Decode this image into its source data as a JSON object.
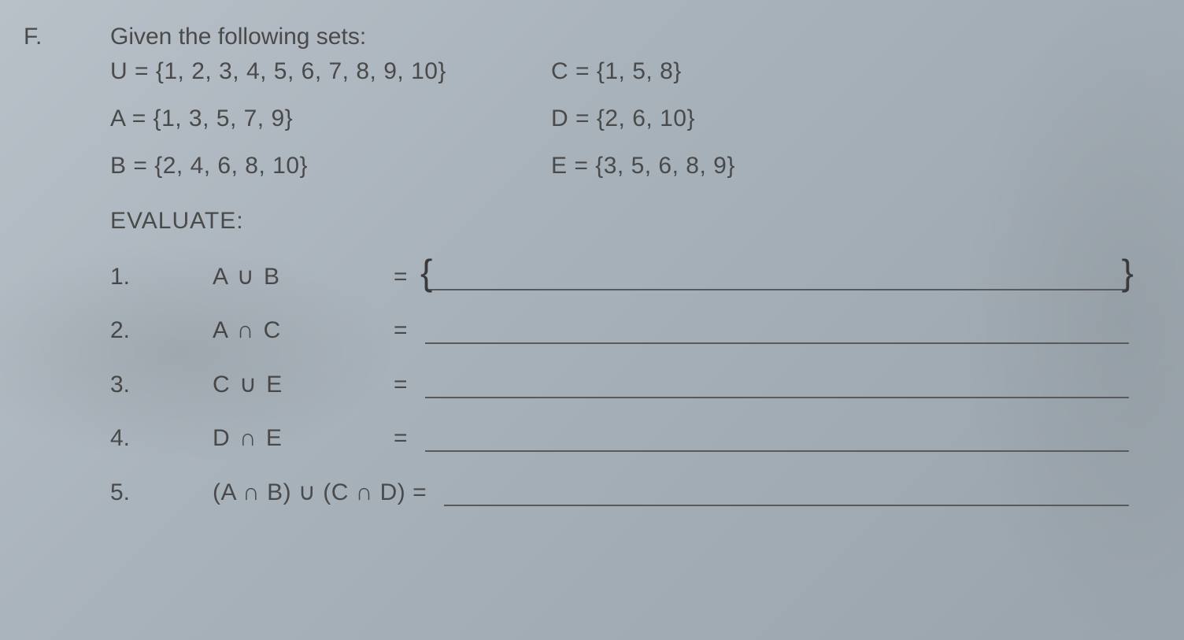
{
  "colors": {
    "paper_bg_start": "#b8c0c8",
    "paper_bg_end": "#9aa4ac",
    "text": "#4a4a4a",
    "underline": "#5a5a5a",
    "handwriting": "#3a3a3a"
  },
  "typography": {
    "body_fontsize_pt": 22,
    "font_family": "Arial"
  },
  "section_label": "F.",
  "heading": "Given the following sets:",
  "sets": {
    "U": "U = {1, 2, 3, 4, 5, 6, 7, 8, 9, 10}",
    "A": "A = {1, 3, 5, 7, 9}",
    "B": "B = {2, 4, 6, 8, 10}",
    "C": "C = {1, 5, 8}",
    "D": "D = {2, 6, 10}",
    "E": "E = {3, 5, 6, 8, 9}"
  },
  "evaluate_label": "EVALUATE:",
  "items": [
    {
      "num": "1.",
      "expr": "A ∪ B",
      "eq": "=",
      "hand_left": "{",
      "hand_right": "}"
    },
    {
      "num": "2.",
      "expr": "A ∩ C",
      "eq": "="
    },
    {
      "num": "3.",
      "expr": "C ∪ E",
      "eq": "="
    },
    {
      "num": "4.",
      "expr": "D ∩ E",
      "eq": "="
    },
    {
      "num": "5.",
      "expr": "(A ∩ B) ∪ (C ∩ D) =",
      "eq": ""
    }
  ]
}
